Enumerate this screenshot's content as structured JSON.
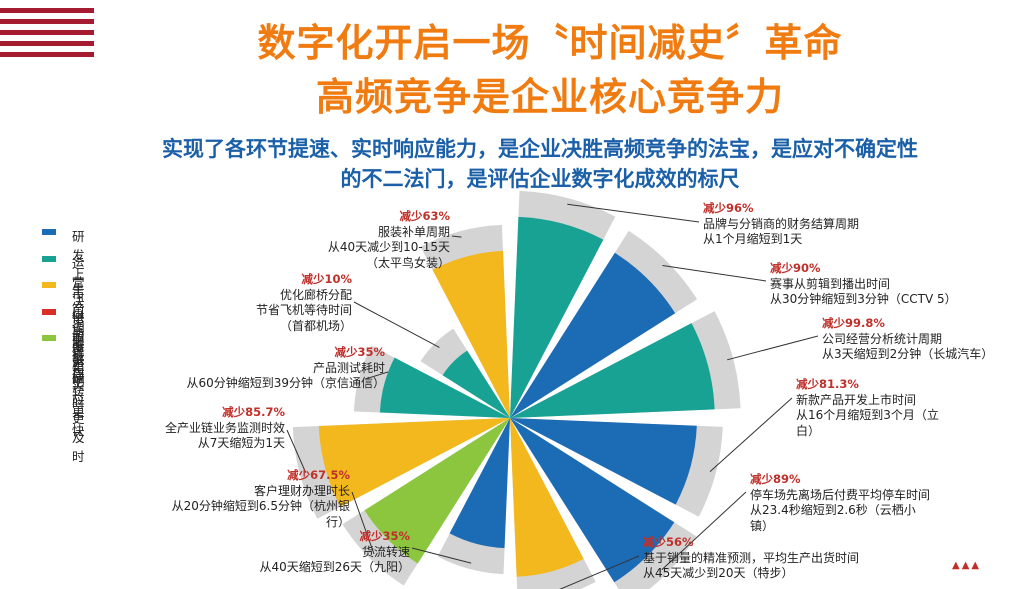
{
  "header": {
    "title_line1": "数字化开启一场〝时间减史〞革命",
    "title_line2": "高频竞争是企业核心竞争力",
    "subtitle_line1": "实现了各环节提速、实时响应能力，是企业决胜高频竞争的法宝，是应对不确定性",
    "subtitle_line2": "的不二法门，是评估企业数字化成效的标尺"
  },
  "legend": [
    {
      "label": "研发上市周期更短",
      "color": "#1c6bb5"
    },
    {
      "label": "运营决策更敏捷",
      "color": "#17a294"
    },
    {
      "label": "生产调度更实时",
      "color": "#f2b81d"
    },
    {
      "label": "供应链周转更快",
      "color": "#d73027"
    },
    {
      "label": "服务响应更及时",
      "color": "#8cc63f"
    }
  ],
  "colors": {
    "background_ring": "#d4d4d4",
    "title": "#f07b10",
    "subtitle": "#1a5fa8",
    "reduction": "#c0302a"
  },
  "chart_data": {
    "type": "polar-area",
    "unit": "%",
    "slices": [
      {
        "category": "运营决策更敏捷",
        "reduction_label": "减少96%",
        "value": 96,
        "lines": [
          "品牌与分销商的财务结算周期",
          "从1个月缩短到1天"
        ]
      },
      {
        "category": "研发上市周期更短",
        "reduction_label": "减少90%",
        "value": 90,
        "lines": [
          "赛事从剪辑到播出时间",
          "从30分钟缩短到3分钟（CCTV 5）"
        ]
      },
      {
        "category": "运营决策更敏捷",
        "reduction_label": "减少99.8%",
        "value": 99.8,
        "lines": [
          "公司经营分析统计周期",
          "从3天缩短到2分钟（长城汽车）"
        ]
      },
      {
        "category": "研发上市周期更短",
        "reduction_label": "减少81.3%",
        "value": 81.3,
        "lines": [
          "新款产品开发上市时间",
          "从16个月缩短到3个月（立",
          "白）"
        ]
      },
      {
        "category": "研发上市周期更短",
        "reduction_label": "减少89%",
        "value": 89,
        "lines": [
          "停车场先离场后付费平均停车时间",
          "从23.4秒缩短到2.6秒（云栖小",
          "镇）"
        ]
      },
      {
        "category": "生产调度更实时",
        "reduction_label": "减少56%",
        "value": 56,
        "lines": [
          "基于销量的精准预测，平均生产出货时间",
          "从45天减少到20天（特步）"
        ]
      },
      {
        "category": "研发上市周期更短",
        "reduction_label": "减少35%",
        "value": 35,
        "lines": [
          "货流转速",
          "从40天缩短到26天（九阳）"
        ]
      },
      {
        "category": "服务响应更及时",
        "reduction_label": "减少67.5%",
        "value": 67.5,
        "lines": [
          "客户理财办理时长",
          "从20分钟缩短到6.5分钟（杭州银",
          "行）"
        ]
      },
      {
        "category": "生产调度更实时",
        "reduction_label": "减少85.7%",
        "value": 85.7,
        "lines": [
          "全产业链业务监测时效",
          "从7天缩短为1天"
        ]
      },
      {
        "category": "运营决策更敏捷",
        "reduction_label": "减少35%",
        "value": 35,
        "lines": [
          "产品测试耗时",
          "从60分钟缩短到39分钟（京信通信）"
        ]
      },
      {
        "category": "运营决策更敏捷",
        "reduction_label": "减少10%",
        "value": 10,
        "lines": [
          "优化廊桥分配",
          "节省飞机等待时间",
          "（首都机场）"
        ]
      },
      {
        "category": "生产调度更实时",
        "reduction_label": "减少63%",
        "value": 63,
        "lines": [
          "服装补单周期",
          "从40天减少到10-15天",
          "（太平鸟女装）"
        ]
      }
    ]
  }
}
